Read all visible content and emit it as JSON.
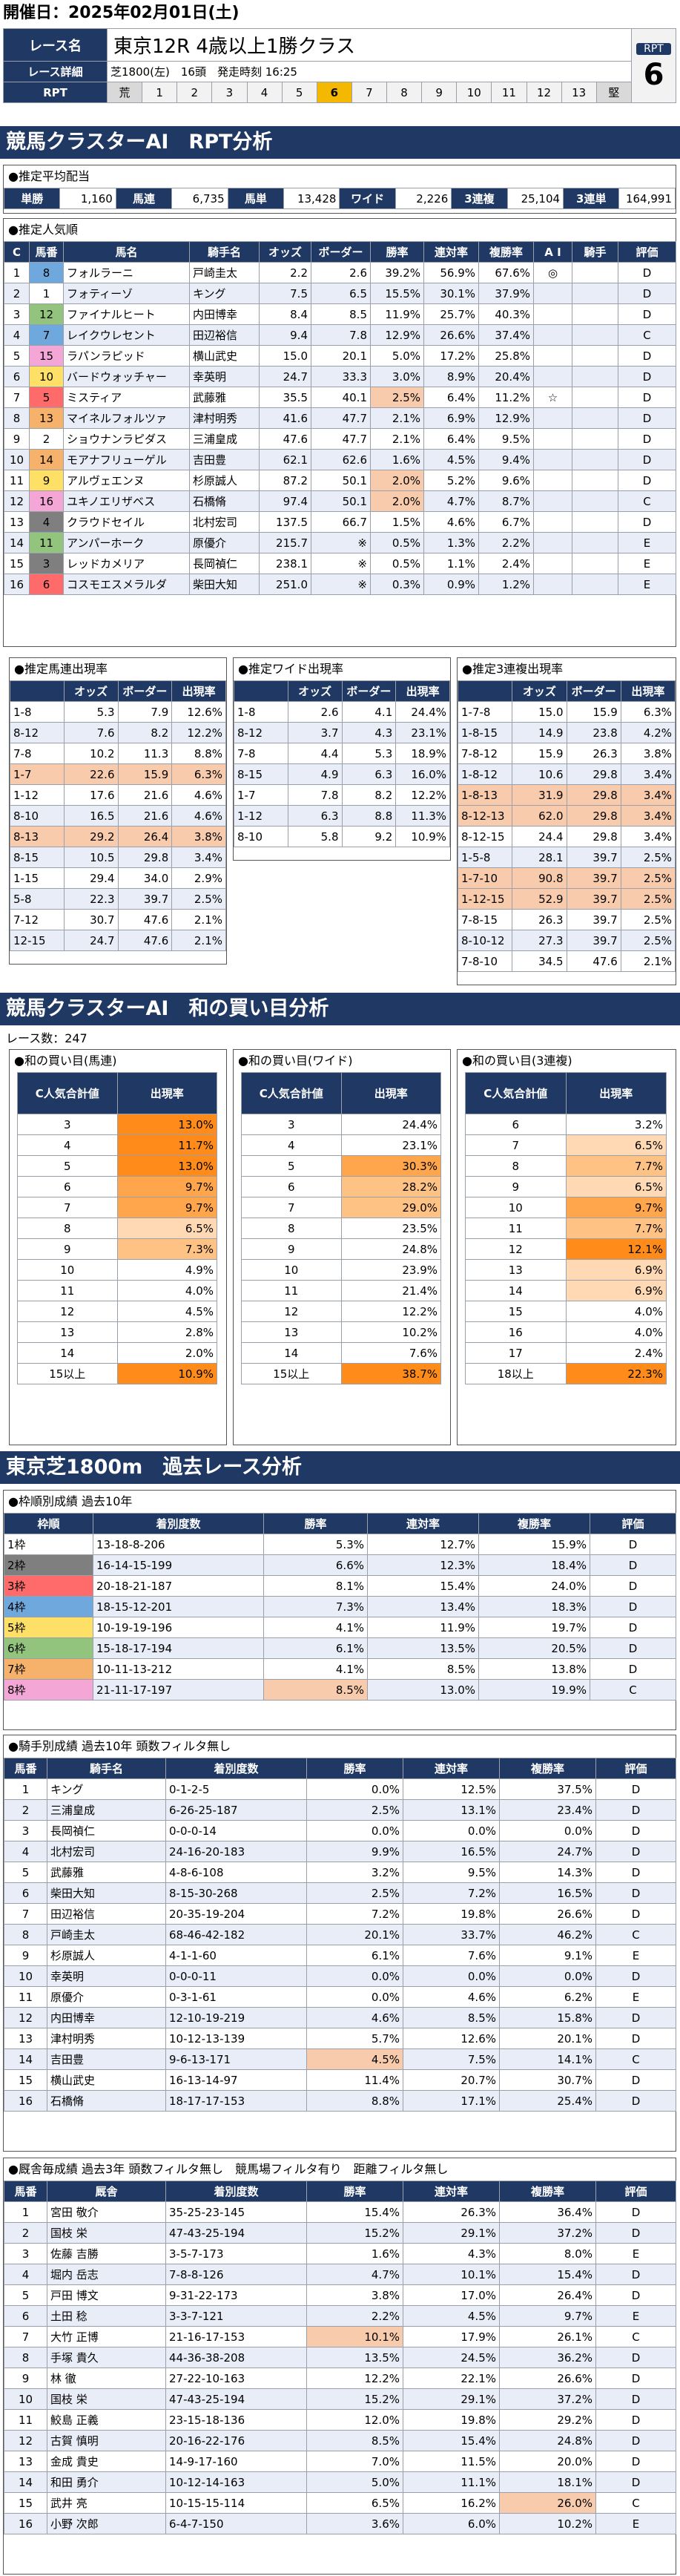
{
  "header": {
    "title": "開催日：2025年02月01日(土)",
    "race_label": "レース名",
    "race_name": "東京12R 4歳以上1勝クラス",
    "detail_label": "レース詳細",
    "detail": "芝1800(左)　16頭　発走時刻 16:25",
    "rpt_label": "RPT",
    "rpt_scale": [
      "荒",
      "1",
      "2",
      "3",
      "4",
      "5",
      "6",
      "7",
      "8",
      "9",
      "10",
      "11",
      "12",
      "13",
      "堅"
    ],
    "rpt_active": 6,
    "rpt_box_label": "RPT",
    "rpt_value": "6"
  },
  "s1": {
    "title": "競馬クラスターAI　RPT分析",
    "payout": {
      "title": "●推定平均配当",
      "items": [
        [
          "単勝",
          "1,160"
        ],
        [
          "馬連",
          "6,735"
        ],
        [
          "馬単",
          "13,428"
        ],
        [
          "ワイド",
          "2,226"
        ],
        [
          "3連複",
          "25,104"
        ],
        [
          "3連単",
          "164,991"
        ]
      ]
    },
    "pop": {
      "title": "●推定人気順",
      "headers": [
        "C",
        "馬番",
        "馬名",
        "騎手名",
        "オッズ",
        "ボーダー",
        "勝率",
        "連対率",
        "複勝率",
        "A I",
        "騎手",
        "評価"
      ],
      "rows": [
        [
          "1",
          "8",
          "フォルラーニ",
          "戸崎圭太",
          "2.2",
          "2.6",
          "39.2%",
          "56.9%",
          "67.6%",
          "◎",
          "",
          "D"
        ],
        [
          "2",
          "1",
          "フォティーゾ",
          "キング",
          "7.5",
          "6.5",
          "15.5%",
          "30.1%",
          "37.9%",
          "",
          "",
          "D"
        ],
        [
          "3",
          "12",
          "ファイナルヒート",
          "内田博幸",
          "8.4",
          "8.5",
          "11.9%",
          "25.7%",
          "40.3%",
          "",
          "",
          "D"
        ],
        [
          "4",
          "7",
          "レイクウレセント",
          "田辺裕信",
          "9.4",
          "7.8",
          "12.9%",
          "26.6%",
          "37.4%",
          "",
          "",
          "C"
        ],
        [
          "5",
          "15",
          "ラパンラピッド",
          "横山武史",
          "15.0",
          "20.1",
          "5.0%",
          "17.2%",
          "25.8%",
          "",
          "",
          "D"
        ],
        [
          "6",
          "10",
          "バードウォッチャー",
          "幸英明",
          "24.7",
          "33.3",
          "3.0%",
          "8.9%",
          "20.4%",
          "",
          "",
          "D"
        ],
        [
          "7",
          "5",
          "ミスティア",
          "武藤雅",
          "35.5",
          "40.1",
          "2.5%",
          "6.4%",
          "11.2%",
          "☆",
          "",
          "D"
        ],
        [
          "8",
          "13",
          "マイネルフォルツァ",
          "津村明秀",
          "41.6",
          "47.7",
          "2.1%",
          "6.9%",
          "12.9%",
          "",
          "",
          "D"
        ],
        [
          "9",
          "2",
          "ショウナンラピダス",
          "三浦皇成",
          "47.6",
          "47.7",
          "2.1%",
          "6.4%",
          "9.5%",
          "",
          "",
          "D"
        ],
        [
          "10",
          "14",
          "モアナフリューゲル",
          "吉田豊",
          "62.1",
          "62.6",
          "1.6%",
          "4.5%",
          "9.4%",
          "",
          "",
          "D"
        ],
        [
          "11",
          "9",
          "アルヴェエンヌ",
          "杉原誠人",
          "87.2",
          "50.1",
          "2.0%",
          "5.2%",
          "9.6%",
          "",
          "",
          "D"
        ],
        [
          "12",
          "16",
          "ユキノエリザベス",
          "石橋脩",
          "97.4",
          "50.1",
          "2.0%",
          "4.7%",
          "8.7%",
          "",
          "",
          "C"
        ],
        [
          "13",
          "4",
          "クラウドセイル",
          "北村宏司",
          "137.5",
          "66.7",
          "1.5%",
          "4.6%",
          "6.7%",
          "",
          "",
          "D"
        ],
        [
          "14",
          "11",
          "アンパーホーク",
          "原優介",
          "215.7",
          "※",
          "0.5%",
          "1.3%",
          "2.2%",
          "",
          "",
          "E"
        ],
        [
          "15",
          "3",
          "レッドカメリア",
          "長岡禎仁",
          "238.1",
          "※",
          "0.5%",
          "1.1%",
          "2.4%",
          "",
          "",
          "E"
        ],
        [
          "16",
          "6",
          "コスモエスメラルダ",
          "柴田大知",
          "251.0",
          "※",
          "0.3%",
          "0.9%",
          "1.2%",
          "",
          "",
          "E"
        ]
      ]
    },
    "umaren": {
      "title": "●推定馬連出現率",
      "headers": [
        "",
        "オッズ",
        "ボーダー",
        "出現率"
      ],
      "rows": [
        [
          "1-8",
          "5.3",
          "7.9",
          "12.6%"
        ],
        [
          "8-12",
          "7.6",
          "8.2",
          "12.2%"
        ],
        [
          "7-8",
          "10.2",
          "11.3",
          "8.8%"
        ],
        [
          "1-7",
          "22.6",
          "15.9",
          "6.3%"
        ],
        [
          "1-12",
          "17.6",
          "21.6",
          "4.6%"
        ],
        [
          "8-10",
          "16.5",
          "21.6",
          "4.6%"
        ],
        [
          "8-13",
          "29.2",
          "26.4",
          "3.8%"
        ],
        [
          "8-15",
          "10.5",
          "29.8",
          "3.4%"
        ],
        [
          "1-15",
          "29.4",
          "34.0",
          "2.9%"
        ],
        [
          "5-8",
          "22.3",
          "39.7",
          "2.5%"
        ],
        [
          "7-12",
          "30.7",
          "47.6",
          "2.1%"
        ],
        [
          "12-15",
          "24.7",
          "47.6",
          "2.1%"
        ]
      ]
    },
    "wide": {
      "title": "●推定ワイド出現率",
      "headers": [
        "",
        "オッズ",
        "ボーダー",
        "出現率"
      ],
      "rows": [
        [
          "1-8",
          "2.6",
          "4.1",
          "24.4%"
        ],
        [
          "8-12",
          "3.7",
          "4.3",
          "23.1%"
        ],
        [
          "7-8",
          "4.4",
          "5.3",
          "18.9%"
        ],
        [
          "8-15",
          "4.9",
          "6.3",
          "16.0%"
        ],
        [
          "1-7",
          "7.8",
          "8.2",
          "12.2%"
        ],
        [
          "1-12",
          "6.3",
          "8.8",
          "11.3%"
        ],
        [
          "8-10",
          "5.8",
          "9.2",
          "10.9%"
        ]
      ]
    },
    "trio": {
      "title": "●推定3連複出現率",
      "headers": [
        "",
        "オッズ",
        "ボーダー",
        "出現率"
      ],
      "rows": [
        [
          "1-7-8",
          "15.0",
          "15.9",
          "6.3%"
        ],
        [
          "1-8-15",
          "14.9",
          "23.8",
          "4.2%"
        ],
        [
          "7-8-12",
          "15.9",
          "26.3",
          "3.8%"
        ],
        [
          "1-8-12",
          "10.6",
          "29.8",
          "3.4%"
        ],
        [
          "1-8-13",
          "31.9",
          "29.8",
          "3.4%"
        ],
        [
          "8-12-13",
          "62.0",
          "29.8",
          "3.4%"
        ],
        [
          "8-12-15",
          "24.4",
          "29.8",
          "3.4%"
        ],
        [
          "1-5-8",
          "28.1",
          "39.7",
          "2.5%"
        ],
        [
          "1-7-10",
          "90.8",
          "39.7",
          "2.5%"
        ],
        [
          "1-12-15",
          "52.9",
          "39.7",
          "2.5%"
        ],
        [
          "7-8-15",
          "26.3",
          "39.7",
          "2.5%"
        ],
        [
          "8-10-12",
          "27.3",
          "39.7",
          "2.5%"
        ],
        [
          "7-8-10",
          "34.5",
          "47.6",
          "2.1%"
        ]
      ]
    }
  },
  "s2": {
    "title": "競馬クラスターAI　和の買い目分析",
    "race_count": "レース数：247",
    "umaren": {
      "title": "●和の買い目(馬連)",
      "h1": "C人気合計値",
      "h2": "出現率",
      "rows": [
        [
          "3",
          "13.0%"
        ],
        [
          "4",
          "11.7%"
        ],
        [
          "5",
          "13.0%"
        ],
        [
          "6",
          "9.7%"
        ],
        [
          "7",
          "9.7%"
        ],
        [
          "8",
          "6.5%"
        ],
        [
          "9",
          "7.3%"
        ],
        [
          "10",
          "4.9%"
        ],
        [
          "11",
          "4.0%"
        ],
        [
          "12",
          "4.5%"
        ],
        [
          "13",
          "2.8%"
        ],
        [
          "14",
          "2.0%"
        ],
        [
          "15以上",
          "10.9%"
        ]
      ]
    },
    "wide": {
      "title": "●和の買い目(ワイド)",
      "h1": "C人気合計値",
      "h2": "出現率",
      "rows": [
        [
          "3",
          "24.4%"
        ],
        [
          "4",
          "23.1%"
        ],
        [
          "5",
          "30.3%"
        ],
        [
          "6",
          "28.2%"
        ],
        [
          "7",
          "29.0%"
        ],
        [
          "8",
          "23.5%"
        ],
        [
          "9",
          "24.8%"
        ],
        [
          "10",
          "23.9%"
        ],
        [
          "11",
          "21.4%"
        ],
        [
          "12",
          "12.2%"
        ],
        [
          "13",
          "10.2%"
        ],
        [
          "14",
          "7.6%"
        ],
        [
          "15以上",
          "38.7%"
        ]
      ]
    },
    "trio": {
      "title": "●和の買い目(3連複)",
      "h1": "C人気合計値",
      "h2": "出現率",
      "rows": [
        [
          "6",
          "3.2%"
        ],
        [
          "7",
          "6.5%"
        ],
        [
          "8",
          "7.7%"
        ],
        [
          "9",
          "6.5%"
        ],
        [
          "10",
          "9.7%"
        ],
        [
          "11",
          "7.7%"
        ],
        [
          "12",
          "12.1%"
        ],
        [
          "13",
          "6.9%"
        ],
        [
          "14",
          "6.9%"
        ],
        [
          "15",
          "4.0%"
        ],
        [
          "16",
          "4.0%"
        ],
        [
          "17",
          "2.4%"
        ],
        [
          "18以上",
          "22.3%"
        ]
      ]
    }
  },
  "s3": {
    "title": "東京芝1800m　過去レース分析",
    "waku": {
      "title": "●枠順別成績 過去10年",
      "headers": [
        "枠順",
        "着別度数",
        "勝率",
        "連対率",
        "複勝率",
        "評価"
      ],
      "rows": [
        [
          "1枠",
          "13-18-8-206",
          "5.3%",
          "12.7%",
          "15.9%",
          "D"
        ],
        [
          "2枠",
          "16-14-15-199",
          "6.6%",
          "12.3%",
          "18.4%",
          "D"
        ],
        [
          "3枠",
          "20-18-21-187",
          "8.1%",
          "15.4%",
          "24.0%",
          "D"
        ],
        [
          "4枠",
          "18-15-12-201",
          "7.3%",
          "13.4%",
          "18.3%",
          "D"
        ],
        [
          "5枠",
          "10-19-19-196",
          "4.1%",
          "11.9%",
          "19.7%",
          "D"
        ],
        [
          "6枠",
          "15-18-17-194",
          "6.1%",
          "13.5%",
          "20.5%",
          "D"
        ],
        [
          "7枠",
          "10-11-13-212",
          "4.1%",
          "8.5%",
          "13.8%",
          "D"
        ],
        [
          "8枠",
          "21-11-17-197",
          "8.5%",
          "13.0%",
          "19.9%",
          "C"
        ]
      ]
    },
    "jockey": {
      "title": "●騎手別成績 過去10年 頭数フィルタ無し",
      "headers": [
        "馬番",
        "騎手名",
        "着別度数",
        "勝率",
        "連対率",
        "複勝率",
        "評価"
      ],
      "rows": [
        [
          "1",
          "キング",
          "0-1-2-5",
          "0.0%",
          "12.5%",
          "37.5%",
          "D"
        ],
        [
          "2",
          "三浦皇成",
          "6-26-25-187",
          "2.5%",
          "13.1%",
          "23.4%",
          "D"
        ],
        [
          "3",
          "長岡禎仁",
          "0-0-0-14",
          "0.0%",
          "0.0%",
          "0.0%",
          "D"
        ],
        [
          "4",
          "北村宏司",
          "24-16-20-183",
          "9.9%",
          "16.5%",
          "24.7%",
          "D"
        ],
        [
          "5",
          "武藤雅",
          "4-8-6-108",
          "3.2%",
          "9.5%",
          "14.3%",
          "D"
        ],
        [
          "6",
          "柴田大知",
          "8-15-30-268",
          "2.5%",
          "7.2%",
          "16.5%",
          "D"
        ],
        [
          "7",
          "田辺裕信",
          "20-35-19-204",
          "7.2%",
          "19.8%",
          "26.6%",
          "D"
        ],
        [
          "8",
          "戸崎圭太",
          "68-46-42-182",
          "20.1%",
          "33.7%",
          "46.2%",
          "C"
        ],
        [
          "9",
          "杉原誠人",
          "4-1-1-60",
          "6.1%",
          "7.6%",
          "9.1%",
          "E"
        ],
        [
          "10",
          "幸英明",
          "0-0-0-11",
          "0.0%",
          "0.0%",
          "0.0%",
          "D"
        ],
        [
          "11",
          "原優介",
          "0-3-1-61",
          "0.0%",
          "4.6%",
          "6.2%",
          "E"
        ],
        [
          "12",
          "内田博幸",
          "12-10-19-219",
          "4.6%",
          "8.5%",
          "15.8%",
          "D"
        ],
        [
          "13",
          "津村明秀",
          "10-12-13-139",
          "5.7%",
          "12.6%",
          "20.1%",
          "D"
        ],
        [
          "14",
          "吉田豊",
          "9-6-13-171",
          "4.5%",
          "7.5%",
          "14.1%",
          "C"
        ],
        [
          "15",
          "横山武史",
          "16-13-14-97",
          "11.4%",
          "20.7%",
          "30.7%",
          "D"
        ],
        [
          "16",
          "石橋脩",
          "18-17-17-153",
          "8.8%",
          "17.1%",
          "25.4%",
          "D"
        ]
      ]
    },
    "trainer": {
      "title": "●厩舎毎成績 過去3年 頭数フィルタ無し　競馬場フィルタ有り　距離フィルタ無し",
      "headers": [
        "馬番",
        "厩舎",
        "着別度数",
        "勝率",
        "連対率",
        "複勝率",
        "評価"
      ],
      "rows": [
        [
          "1",
          "宮田 敬介",
          "35-25-23-145",
          "15.4%",
          "26.3%",
          "36.4%",
          "D"
        ],
        [
          "2",
          "国枝 栄",
          "47-43-25-194",
          "15.2%",
          "29.1%",
          "37.2%",
          "D"
        ],
        [
          "3",
          "佐藤 吉勝",
          "3-5-7-173",
          "1.6%",
          "4.3%",
          "8.0%",
          "E"
        ],
        [
          "4",
          "堀内 岳志",
          "7-8-8-126",
          "4.7%",
          "10.1%",
          "15.4%",
          "D"
        ],
        [
          "5",
          "戸田 博文",
          "9-31-22-173",
          "3.8%",
          "17.0%",
          "26.4%",
          "D"
        ],
        [
          "6",
          "土田 稔",
          "3-3-7-121",
          "2.2%",
          "4.5%",
          "9.7%",
          "E"
        ],
        [
          "7",
          "大竹 正博",
          "21-16-17-153",
          "10.1%",
          "17.9%",
          "26.1%",
          "C"
        ],
        [
          "8",
          "手塚 貴久",
          "44-36-38-208",
          "13.5%",
          "24.5%",
          "36.2%",
          "D"
        ],
        [
          "9",
          "林 徹",
          "27-22-10-163",
          "12.2%",
          "22.1%",
          "26.6%",
          "D"
        ],
        [
          "10",
          "国枝 栄",
          "47-43-25-194",
          "15.2%",
          "29.1%",
          "37.2%",
          "D"
        ],
        [
          "11",
          "鮫島 正義",
          "23-15-18-136",
          "12.0%",
          "19.8%",
          "29.2%",
          "D"
        ],
        [
          "12",
          "古賀 慎明",
          "20-16-22-176",
          "8.5%",
          "15.4%",
          "24.8%",
          "D"
        ],
        [
          "13",
          "金成 貴史",
          "14-9-17-160",
          "7.0%",
          "11.5%",
          "20.0%",
          "D"
        ],
        [
          "14",
          "和田 勇介",
          "10-12-14-163",
          "5.0%",
          "11.1%",
          "18.1%",
          "D"
        ],
        [
          "15",
          "武井 亮",
          "10-15-15-114",
          "6.5%",
          "16.2%",
          "26.0%",
          "C"
        ],
        [
          "16",
          "小野 次郎",
          "6-4-7-150",
          "3.6%",
          "6.0%",
          "10.2%",
          "E"
        ]
      ]
    }
  }
}
